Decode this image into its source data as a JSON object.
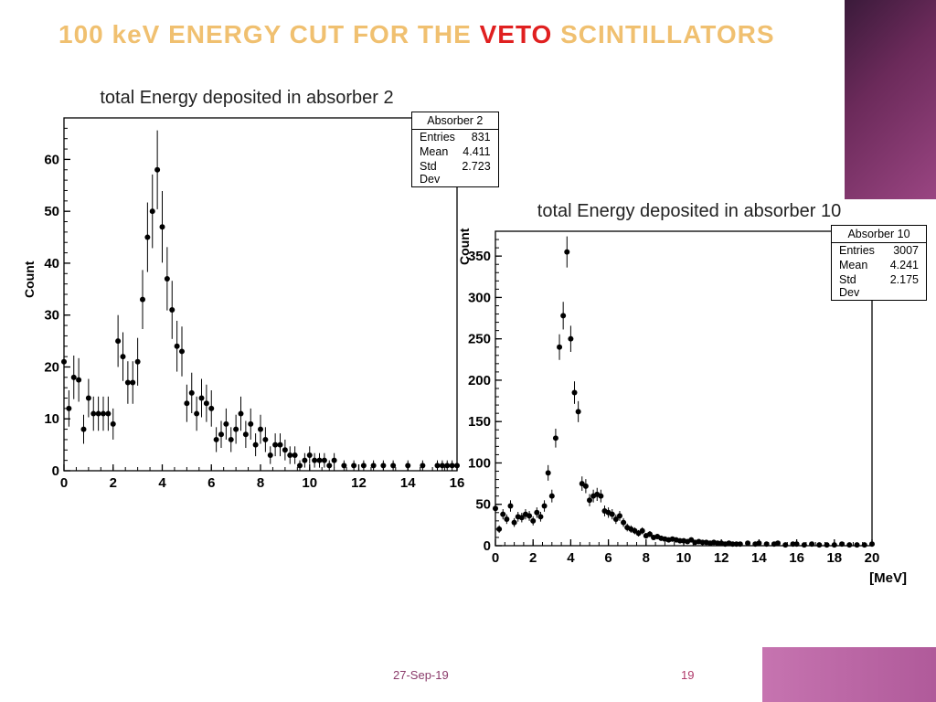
{
  "title": {
    "parts": [
      {
        "text": "100 keV ENERGY CUT FOR THE ",
        "color": "#f0c070"
      },
      {
        "text": "VETO",
        "color": "#e02020"
      },
      {
        "text": " SCINTILLATORS",
        "color": "#f0c070"
      }
    ],
    "fontsize": 28
  },
  "footer": {
    "date": "27-Sep-19",
    "page": "19",
    "date_color": "#8a3a6a",
    "page_color": "#b03a6a"
  },
  "decor_gradient": [
    "#3a1a3a",
    "#9a4582"
  ],
  "charts": [
    {
      "id": "chart1",
      "type": "histogram-with-errors",
      "title": "total Energy deposited in absorber 2",
      "title_fontsize": 20,
      "ylabel": "Count",
      "xlabel": "",
      "statbox": {
        "title": "Absorber 2",
        "entries": 831,
        "mean": 4.411,
        "stddev": 2.723
      },
      "xlim": [
        0,
        16
      ],
      "ylim": [
        0,
        68
      ],
      "xticks": [
        0,
        2,
        4,
        6,
        8,
        10,
        12,
        14,
        16
      ],
      "yticks": [
        0,
        10,
        20,
        30,
        40,
        50,
        60
      ],
      "n_minor_y": 5,
      "n_minor_x": 4,
      "axis_fontsize": 15,
      "label_fontsize_bold": 14,
      "marker": "circle",
      "marker_size": 3,
      "marker_color": "#000000",
      "error_color": "#000000",
      "background": "#ffffff",
      "data": [
        {
          "x": 0.0,
          "y": 21,
          "e": 4.6
        },
        {
          "x": 0.2,
          "y": 12,
          "e": 3.5
        },
        {
          "x": 0.4,
          "y": 18,
          "e": 4.2
        },
        {
          "x": 0.6,
          "y": 17.5,
          "e": 4.2
        },
        {
          "x": 0.8,
          "y": 8,
          "e": 2.8
        },
        {
          "x": 1.0,
          "y": 14,
          "e": 3.7
        },
        {
          "x": 1.2,
          "y": 11,
          "e": 3.3
        },
        {
          "x": 1.4,
          "y": 11,
          "e": 3.3
        },
        {
          "x": 1.6,
          "y": 11,
          "e": 3.3
        },
        {
          "x": 1.8,
          "y": 11,
          "e": 3.3
        },
        {
          "x": 2.0,
          "y": 9,
          "e": 3.0
        },
        {
          "x": 2.2,
          "y": 25,
          "e": 5.0
        },
        {
          "x": 2.4,
          "y": 22,
          "e": 4.7
        },
        {
          "x": 2.6,
          "y": 17,
          "e": 4.1
        },
        {
          "x": 2.8,
          "y": 17,
          "e": 4.1
        },
        {
          "x": 3.0,
          "y": 21,
          "e": 4.6
        },
        {
          "x": 3.2,
          "y": 33,
          "e": 5.7
        },
        {
          "x": 3.4,
          "y": 45,
          "e": 6.7
        },
        {
          "x": 3.6,
          "y": 50,
          "e": 7.1
        },
        {
          "x": 3.8,
          "y": 58,
          "e": 7.6
        },
        {
          "x": 4.0,
          "y": 47,
          "e": 6.9
        },
        {
          "x": 4.2,
          "y": 37,
          "e": 6.1
        },
        {
          "x": 4.4,
          "y": 31,
          "e": 5.6
        },
        {
          "x": 4.6,
          "y": 24,
          "e": 4.9
        },
        {
          "x": 4.8,
          "y": 23,
          "e": 4.8
        },
        {
          "x": 5.0,
          "y": 13,
          "e": 3.6
        },
        {
          "x": 5.2,
          "y": 15,
          "e": 3.9
        },
        {
          "x": 5.4,
          "y": 11,
          "e": 3.3
        },
        {
          "x": 5.6,
          "y": 14,
          "e": 3.7
        },
        {
          "x": 5.8,
          "y": 13,
          "e": 3.6
        },
        {
          "x": 6.0,
          "y": 12,
          "e": 3.5
        },
        {
          "x": 6.2,
          "y": 6,
          "e": 2.4
        },
        {
          "x": 6.4,
          "y": 7,
          "e": 2.6
        },
        {
          "x": 6.6,
          "y": 9,
          "e": 3.0
        },
        {
          "x": 6.8,
          "y": 6,
          "e": 2.4
        },
        {
          "x": 7.0,
          "y": 8,
          "e": 2.8
        },
        {
          "x": 7.2,
          "y": 11,
          "e": 3.3
        },
        {
          "x": 7.4,
          "y": 7,
          "e": 2.6
        },
        {
          "x": 7.6,
          "y": 9,
          "e": 3.0
        },
        {
          "x": 7.8,
          "y": 5,
          "e": 2.2
        },
        {
          "x": 8.0,
          "y": 8,
          "e": 2.8
        },
        {
          "x": 8.2,
          "y": 6,
          "e": 2.4
        },
        {
          "x": 8.4,
          "y": 3,
          "e": 1.7
        },
        {
          "x": 8.6,
          "y": 5,
          "e": 2.2
        },
        {
          "x": 8.8,
          "y": 5,
          "e": 2.2
        },
        {
          "x": 9.0,
          "y": 4,
          "e": 2.0
        },
        {
          "x": 9.2,
          "y": 3,
          "e": 1.7
        },
        {
          "x": 9.4,
          "y": 3,
          "e": 1.7
        },
        {
          "x": 9.6,
          "y": 1,
          "e": 1.0
        },
        {
          "x": 9.8,
          "y": 2,
          "e": 1.4
        },
        {
          "x": 10.0,
          "y": 3,
          "e": 1.7
        },
        {
          "x": 10.2,
          "y": 2,
          "e": 1.4
        },
        {
          "x": 10.4,
          "y": 2,
          "e": 1.4
        },
        {
          "x": 10.6,
          "y": 2,
          "e": 1.4
        },
        {
          "x": 10.8,
          "y": 1,
          "e": 1.0
        },
        {
          "x": 11.0,
          "y": 2,
          "e": 1.4
        },
        {
          "x": 11.4,
          "y": 1,
          "e": 1.0
        },
        {
          "x": 11.8,
          "y": 1,
          "e": 1.0
        },
        {
          "x": 12.2,
          "y": 1,
          "e": 1.0
        },
        {
          "x": 12.6,
          "y": 1,
          "e": 1.0
        },
        {
          "x": 13.0,
          "y": 1,
          "e": 1.0
        },
        {
          "x": 13.4,
          "y": 1,
          "e": 1.0
        },
        {
          "x": 14.0,
          "y": 1,
          "e": 1.0
        },
        {
          "x": 14.6,
          "y": 1,
          "e": 1.0
        },
        {
          "x": 15.2,
          "y": 1,
          "e": 1.0
        },
        {
          "x": 15.4,
          "y": 1,
          "e": 1.0
        },
        {
          "x": 15.6,
          "y": 1,
          "e": 1.0
        },
        {
          "x": 15.8,
          "y": 1,
          "e": 1.0
        },
        {
          "x": 16.0,
          "y": 1,
          "e": 1.0
        }
      ]
    },
    {
      "id": "chart2",
      "type": "histogram-with-errors",
      "title": "total Energy deposited in absorber 10",
      "title_fontsize": 20,
      "ylabel": "Count",
      "xlabel": "[MeV]",
      "statbox": {
        "title": "Absorber 10",
        "entries": 3007,
        "mean": 4.241,
        "stddev": 2.175
      },
      "xlim": [
        0,
        20
      ],
      "ylim": [
        0,
        380
      ],
      "xticks": [
        0,
        2,
        4,
        6,
        8,
        10,
        12,
        14,
        16,
        18,
        20
      ],
      "yticks": [
        0,
        50,
        100,
        150,
        200,
        250,
        300,
        350
      ],
      "n_minor_y": 5,
      "n_minor_x": 4,
      "axis_fontsize": 15,
      "label_fontsize_bold": 14,
      "marker": "circle",
      "marker_size": 3,
      "marker_color": "#000000",
      "error_color": "#000000",
      "background": "#ffffff",
      "data": [
        {
          "x": 0.0,
          "y": 45,
          "e": 6.7
        },
        {
          "x": 0.2,
          "y": 20,
          "e": 4.5
        },
        {
          "x": 0.4,
          "y": 38,
          "e": 6.2
        },
        {
          "x": 0.6,
          "y": 32,
          "e": 5.7
        },
        {
          "x": 0.8,
          "y": 48,
          "e": 6.9
        },
        {
          "x": 1.0,
          "y": 28,
          "e": 5.3
        },
        {
          "x": 1.2,
          "y": 35,
          "e": 5.9
        },
        {
          "x": 1.4,
          "y": 34,
          "e": 5.8
        },
        {
          "x": 1.6,
          "y": 38,
          "e": 6.2
        },
        {
          "x": 1.8,
          "y": 36,
          "e": 6.0
        },
        {
          "x": 2.0,
          "y": 30,
          "e": 5.5
        },
        {
          "x": 2.2,
          "y": 40,
          "e": 6.3
        },
        {
          "x": 2.4,
          "y": 35,
          "e": 5.9
        },
        {
          "x": 2.6,
          "y": 48,
          "e": 6.9
        },
        {
          "x": 2.8,
          "y": 88,
          "e": 9.4
        },
        {
          "x": 3.0,
          "y": 60,
          "e": 7.7
        },
        {
          "x": 3.2,
          "y": 130,
          "e": 11.4
        },
        {
          "x": 3.4,
          "y": 240,
          "e": 15.5
        },
        {
          "x": 3.6,
          "y": 278,
          "e": 16.7
        },
        {
          "x": 3.8,
          "y": 355,
          "e": 18.8
        },
        {
          "x": 4.0,
          "y": 250,
          "e": 15.8
        },
        {
          "x": 4.2,
          "y": 185,
          "e": 13.6
        },
        {
          "x": 4.4,
          "y": 162,
          "e": 12.7
        },
        {
          "x": 4.6,
          "y": 75,
          "e": 8.7
        },
        {
          "x": 4.8,
          "y": 72,
          "e": 8.5
        },
        {
          "x": 5.0,
          "y": 55,
          "e": 7.4
        },
        {
          "x": 5.2,
          "y": 60,
          "e": 7.7
        },
        {
          "x": 5.4,
          "y": 62,
          "e": 7.9
        },
        {
          "x": 5.6,
          "y": 60,
          "e": 7.7
        },
        {
          "x": 5.8,
          "y": 42,
          "e": 6.5
        },
        {
          "x": 6.0,
          "y": 40,
          "e": 6.3
        },
        {
          "x": 6.2,
          "y": 38,
          "e": 6.2
        },
        {
          "x": 6.4,
          "y": 32,
          "e": 5.7
        },
        {
          "x": 6.6,
          "y": 36,
          "e": 6.0
        },
        {
          "x": 6.8,
          "y": 28,
          "e": 5.3
        },
        {
          "x": 7.0,
          "y": 22,
          "e": 4.7
        },
        {
          "x": 7.2,
          "y": 20,
          "e": 4.5
        },
        {
          "x": 7.4,
          "y": 18,
          "e": 4.2
        },
        {
          "x": 7.6,
          "y": 15,
          "e": 3.9
        },
        {
          "x": 7.8,
          "y": 18,
          "e": 4.2
        },
        {
          "x": 8.0,
          "y": 12,
          "e": 3.5
        },
        {
          "x": 8.2,
          "y": 14,
          "e": 3.7
        },
        {
          "x": 8.4,
          "y": 10,
          "e": 3.2
        },
        {
          "x": 8.6,
          "y": 11,
          "e": 3.3
        },
        {
          "x": 8.8,
          "y": 9,
          "e": 3.0
        },
        {
          "x": 9.0,
          "y": 8,
          "e": 2.8
        },
        {
          "x": 9.2,
          "y": 7,
          "e": 2.6
        },
        {
          "x": 9.4,
          "y": 8,
          "e": 2.8
        },
        {
          "x": 9.6,
          "y": 7,
          "e": 2.6
        },
        {
          "x": 9.8,
          "y": 6,
          "e": 2.4
        },
        {
          "x": 10.0,
          "y": 6,
          "e": 2.4
        },
        {
          "x": 10.2,
          "y": 5,
          "e": 2.2
        },
        {
          "x": 10.4,
          "y": 7,
          "e": 2.6
        },
        {
          "x": 10.6,
          "y": 4,
          "e": 2.0
        },
        {
          "x": 10.8,
          "y": 5,
          "e": 2.2
        },
        {
          "x": 11.0,
          "y": 4,
          "e": 2.0
        },
        {
          "x": 11.2,
          "y": 4,
          "e": 2.0
        },
        {
          "x": 11.4,
          "y": 3,
          "e": 1.7
        },
        {
          "x": 11.6,
          "y": 4,
          "e": 2.0
        },
        {
          "x": 11.8,
          "y": 3,
          "e": 1.7
        },
        {
          "x": 12.0,
          "y": 3,
          "e": 1.7
        },
        {
          "x": 12.2,
          "y": 2,
          "e": 1.4
        },
        {
          "x": 12.4,
          "y": 3,
          "e": 1.7
        },
        {
          "x": 12.6,
          "y": 2,
          "e": 1.4
        },
        {
          "x": 12.8,
          "y": 2,
          "e": 1.4
        },
        {
          "x": 13.0,
          "y": 2,
          "e": 1.4
        },
        {
          "x": 13.4,
          "y": 3,
          "e": 1.7
        },
        {
          "x": 13.8,
          "y": 2,
          "e": 1.4
        },
        {
          "x": 14.0,
          "y": 3,
          "e": 1.7
        },
        {
          "x": 14.4,
          "y": 2,
          "e": 1.4
        },
        {
          "x": 14.8,
          "y": 2,
          "e": 1.4
        },
        {
          "x": 15.0,
          "y": 3,
          "e": 1.7
        },
        {
          "x": 15.4,
          "y": 1,
          "e": 1.0
        },
        {
          "x": 15.8,
          "y": 2,
          "e": 1.4
        },
        {
          "x": 16.0,
          "y": 2,
          "e": 1.4
        },
        {
          "x": 16.4,
          "y": 1,
          "e": 1.0
        },
        {
          "x": 16.8,
          "y": 2,
          "e": 1.4
        },
        {
          "x": 17.2,
          "y": 1,
          "e": 1.0
        },
        {
          "x": 17.6,
          "y": 1,
          "e": 1.0
        },
        {
          "x": 18.0,
          "y": 1,
          "e": 1.0
        },
        {
          "x": 18.4,
          "y": 2,
          "e": 1.4
        },
        {
          "x": 18.8,
          "y": 1,
          "e": 1.0
        },
        {
          "x": 19.2,
          "y": 1,
          "e": 1.0
        },
        {
          "x": 19.6,
          "y": 1,
          "e": 1.0
        },
        {
          "x": 20.0,
          "y": 2,
          "e": 1.4
        }
      ]
    }
  ]
}
